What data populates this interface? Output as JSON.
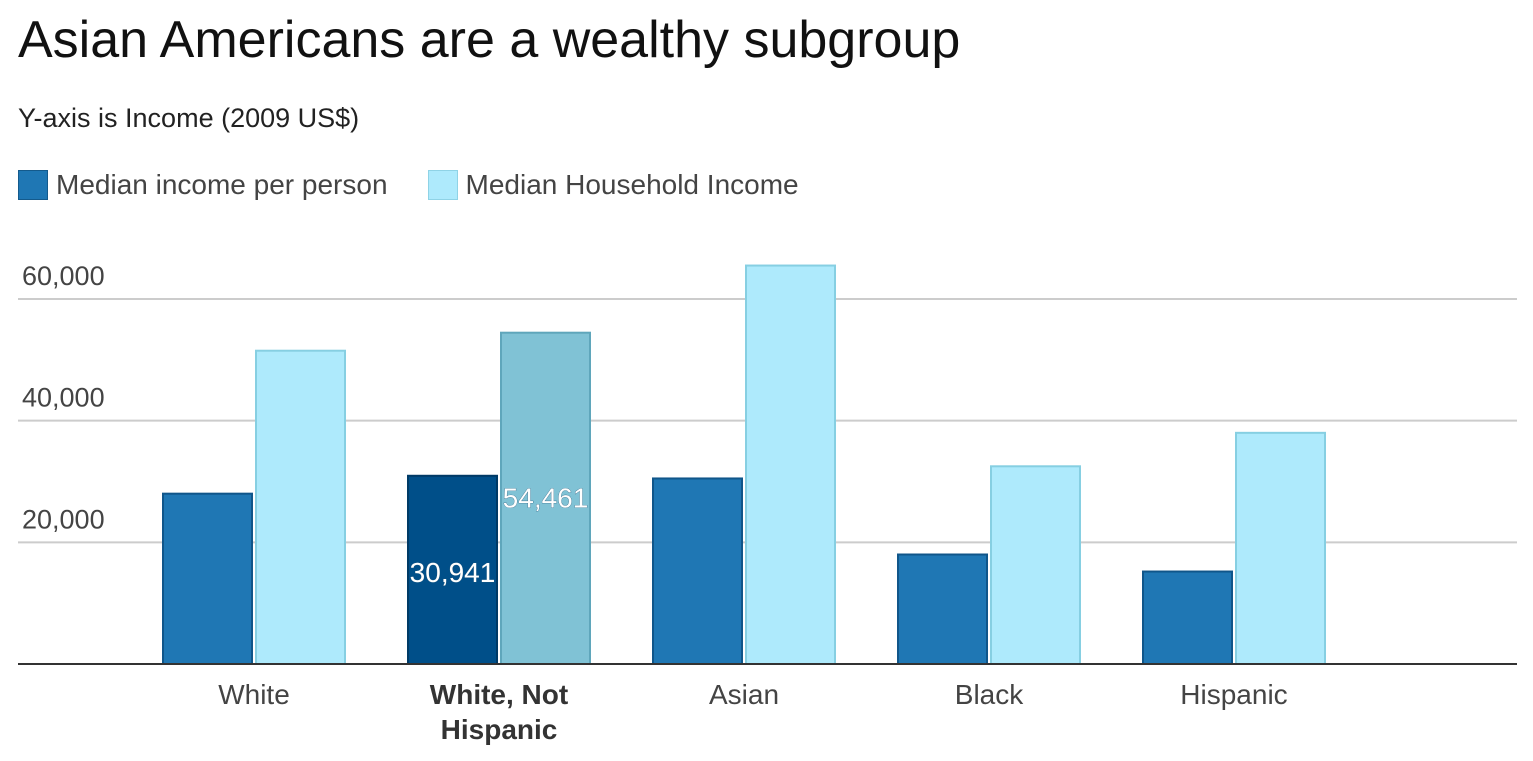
{
  "chart_data": {
    "type": "bar",
    "title": "Asian Americans are a wealthy subgroup",
    "subtitle": "Y-axis is Income (2009 US$)",
    "xlabel": "",
    "ylabel": "",
    "categories": [
      "White",
      "White, Not Hispanic",
      "Asian",
      "Black",
      "Hispanic"
    ],
    "series": [
      {
        "name": "Median income per person",
        "color": "#1f77b4",
        "values": [
          28000,
          30941,
          30500,
          18000,
          15200
        ]
      },
      {
        "name": "Median Household Income",
        "color": "#aeeafc",
        "values": [
          51500,
          54461,
          65500,
          32500,
          38000
        ]
      }
    ],
    "ylim": [
      0,
      60000
    ],
    "yticks": [
      "20,000",
      "40,000",
      "60,000"
    ],
    "ytick_values": [
      20000,
      40000,
      60000
    ],
    "grid": true,
    "legend": "top-left",
    "highlighted_category": "White, Not Hispanic",
    "highlight_colors": [
      "#004f89",
      "#80c2d5"
    ],
    "data_labels": [
      "30,941",
      "54,461"
    ]
  }
}
